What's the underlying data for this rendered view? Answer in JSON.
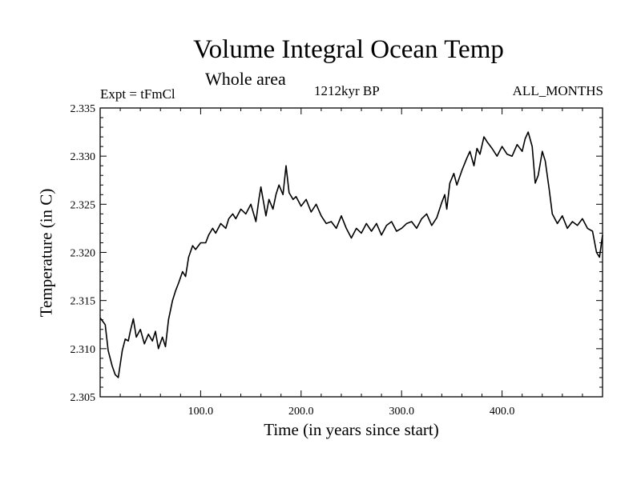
{
  "chart_data": {
    "type": "line",
    "title": "Volume Integral Ocean Temp",
    "subtitle": "Whole area",
    "annotations": {
      "experiment": "Expt = tFmCl",
      "period": "1212kyr BP",
      "months": "ALL_MONTHS"
    },
    "xlabel": "Time (in years since start)",
    "ylabel": "Temperature (in C)",
    "xlim": [
      0,
      500
    ],
    "ylim": [
      2.305,
      2.335
    ],
    "xticks": [
      100,
      200,
      300,
      400
    ],
    "xtick_labels": [
      "100.0",
      "200.0",
      "300.0",
      "400.0"
    ],
    "yticks": [
      2.305,
      2.31,
      2.315,
      2.32,
      2.325,
      2.33,
      2.335
    ],
    "ytick_labels": [
      "2.305",
      "2.310",
      "2.315",
      "2.320",
      "2.325",
      "2.330",
      "2.335"
    ],
    "grid": false,
    "series": [
      {
        "name": "Volume Integral Ocean Temp",
        "x": [
          0,
          5,
          8,
          12,
          15,
          18,
          22,
          25,
          28,
          30,
          33,
          36,
          40,
          44,
          48,
          52,
          55,
          58,
          62,
          65,
          68,
          72,
          75,
          78,
          82,
          85,
          88,
          92,
          95,
          100,
          105,
          108,
          112,
          115,
          120,
          125,
          128,
          132,
          135,
          140,
          145,
          150,
          155,
          158,
          160,
          163,
          165,
          168,
          172,
          175,
          178,
          182,
          185,
          188,
          192,
          195,
          200,
          205,
          210,
          215,
          220,
          225,
          230,
          235,
          240,
          245,
          250,
          255,
          260,
          265,
          270,
          275,
          280,
          285,
          290,
          295,
          300,
          305,
          310,
          315,
          320,
          325,
          330,
          335,
          340,
          343,
          345,
          348,
          352,
          355,
          360,
          365,
          368,
          372,
          375,
          378,
          382,
          385,
          390,
          395,
          400,
          405,
          410,
          415,
          420,
          423,
          426,
          430,
          433,
          436,
          440,
          443,
          447,
          450,
          455,
          460,
          465,
          470,
          475,
          480,
          485,
          490,
          494,
          497,
          500
        ],
        "values": [
          2.3132,
          2.3125,
          2.3098,
          2.3082,
          2.3073,
          2.307,
          2.3098,
          2.311,
          2.3108,
          2.3118,
          2.3131,
          2.3112,
          2.312,
          2.3105,
          2.3115,
          2.3108,
          2.3118,
          2.31,
          2.3112,
          2.3102,
          2.313,
          2.315,
          2.316,
          2.3168,
          2.318,
          2.3175,
          2.3195,
          2.3207,
          2.3203,
          2.321,
          2.321,
          2.3218,
          2.3225,
          2.322,
          2.323,
          2.3225,
          2.3235,
          2.324,
          2.3235,
          2.3245,
          2.324,
          2.325,
          2.3232,
          2.3255,
          2.3268,
          2.325,
          2.3238,
          2.3255,
          2.3245,
          2.326,
          2.327,
          2.326,
          2.329,
          2.3262,
          2.3255,
          2.3258,
          2.3248,
          2.3255,
          2.3242,
          2.325,
          2.3238,
          2.323,
          2.3232,
          2.3225,
          2.3238,
          2.3225,
          2.3215,
          2.3225,
          2.322,
          2.323,
          2.3222,
          2.323,
          2.3218,
          2.3228,
          2.3232,
          2.3222,
          2.3225,
          2.323,
          2.3232,
          2.3225,
          2.3235,
          2.324,
          2.3228,
          2.3236,
          2.3252,
          2.326,
          2.3245,
          2.3272,
          2.3282,
          2.327,
          2.3285,
          2.3298,
          2.3305,
          2.329,
          2.3308,
          2.3302,
          2.332,
          2.3315,
          2.3308,
          2.33,
          2.331,
          2.3302,
          2.33,
          2.3312,
          2.3305,
          2.3318,
          2.3325,
          2.331,
          2.3272,
          2.328,
          2.3305,
          2.3295,
          2.3265,
          2.324,
          2.323,
          2.3238,
          2.3225,
          2.3232,
          2.3228,
          2.3235,
          2.3225,
          2.3222,
          2.32,
          2.3195,
          2.3218
        ]
      }
    ]
  }
}
